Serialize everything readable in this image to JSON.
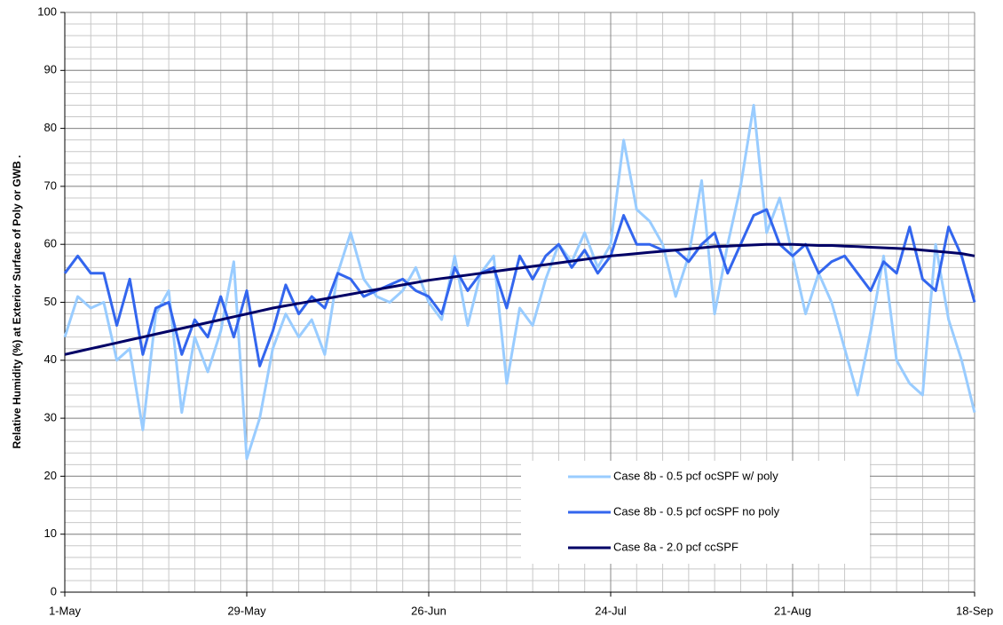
{
  "chart_data": {
    "type": "line",
    "y_label": "Relative Humidity  (%) at Exterior Surface of Poly or GWB .",
    "x": [
      "1-May",
      "3-May",
      "5-May",
      "7-May",
      "9-May",
      "11-May",
      "13-May",
      "15-May",
      "17-May",
      "19-May",
      "21-May",
      "23-May",
      "25-May",
      "27-May",
      "29-May",
      "31-May",
      "2-Jun",
      "4-Jun",
      "6-Jun",
      "8-Jun",
      "10-Jun",
      "12-Jun",
      "14-Jun",
      "16-Jun",
      "18-Jun",
      "20-Jun",
      "22-Jun",
      "24-Jun",
      "26-Jun",
      "28-Jun",
      "30-Jun",
      "2-Jul",
      "4-Jul",
      "6-Jul",
      "8-Jul",
      "10-Jul",
      "12-Jul",
      "14-Jul",
      "16-Jul",
      "18-Jul",
      "20-Jul",
      "22-Jul",
      "24-Jul",
      "26-Jul",
      "28-Jul",
      "30-Jul",
      "1-Aug",
      "3-Aug",
      "5-Aug",
      "7-Aug",
      "9-Aug",
      "11-Aug",
      "13-Aug",
      "15-Aug",
      "17-Aug",
      "19-Aug",
      "21-Aug",
      "23-Aug",
      "25-Aug",
      "27-Aug",
      "29-Aug",
      "31-Aug",
      "2-Sep",
      "4-Sep",
      "6-Sep",
      "8-Sep",
      "10-Sep",
      "12-Sep",
      "14-Sep",
      "16-Sep",
      "18-Sep"
    ],
    "xticks": [
      "1-May",
      "29-May",
      "26-Jun",
      "24-Jul",
      "21-Aug",
      "18-Sep"
    ],
    "series": [
      {
        "name": "Case 8b - 0.5 pcf ocSPF w/ poly",
        "color": "#99ccff",
        "values": [
          44,
          51,
          49,
          50,
          40,
          42,
          28,
          48,
          52,
          31,
          44,
          38,
          45,
          57,
          23,
          30,
          42,
          48,
          44,
          47,
          41,
          55,
          62,
          54,
          51,
          50,
          52,
          56,
          50,
          47,
          58,
          46,
          55,
          58,
          36,
          49,
          46,
          54,
          60,
          57,
          62,
          56,
          60,
          78,
          66,
          64,
          60,
          51,
          58,
          71,
          48,
          60,
          70,
          84,
          62,
          68,
          58,
          48,
          55,
          50,
          42,
          34,
          45,
          58,
          40,
          36,
          34,
          60,
          47,
          40,
          31
        ]
      },
      {
        "name": "Case 8b - 0.5 pcf ocSPF no poly",
        "color": "#3366ee",
        "values": [
          55,
          58,
          55,
          55,
          46,
          54,
          41,
          49,
          50,
          41,
          47,
          44,
          51,
          44,
          52,
          39,
          45,
          53,
          48,
          51,
          49,
          55,
          54,
          51,
          52,
          53,
          54,
          52,
          51,
          48,
          56,
          52,
          55,
          56,
          49,
          58,
          54,
          58,
          60,
          56,
          59,
          55,
          58,
          65,
          60,
          60,
          59,
          59,
          57,
          60,
          62,
          55,
          60,
          65,
          66,
          60,
          58,
          60,
          55,
          57,
          58,
          55,
          52,
          57,
          55,
          63,
          54,
          52,
          63,
          58,
          50
        ]
      },
      {
        "name": "Case 8a - 2.0 pcf ccSPF",
        "color": "#000066",
        "values": [
          41,
          41.5,
          42,
          42.5,
          43,
          43.5,
          44,
          44.5,
          45,
          45.5,
          46,
          46.5,
          47,
          47.5,
          48,
          48.5,
          49,
          49.4,
          49.8,
          50.2,
          50.6,
          51,
          51.4,
          51.8,
          52.2,
          52.6,
          53,
          53.4,
          53.8,
          54.1,
          54.4,
          54.7,
          55,
          55.3,
          55.6,
          55.9,
          56.2,
          56.5,
          56.8,
          57.1,
          57.4,
          57.7,
          58,
          58.2,
          58.4,
          58.6,
          58.8,
          59,
          59.2,
          59.4,
          59.6,
          59.7,
          59.8,
          59.9,
          60,
          60,
          60,
          59.9,
          59.8,
          59.8,
          59.7,
          59.6,
          59.5,
          59.4,
          59.3,
          59.2,
          59,
          58.8,
          58.6,
          58.4,
          58
        ]
      }
    ],
    "ylim": [
      0,
      100
    ],
    "yticks": [
      0,
      10,
      20,
      30,
      40,
      50,
      60,
      70,
      80,
      90,
      100
    ],
    "grid": true,
    "minor_grid_step": 2
  }
}
